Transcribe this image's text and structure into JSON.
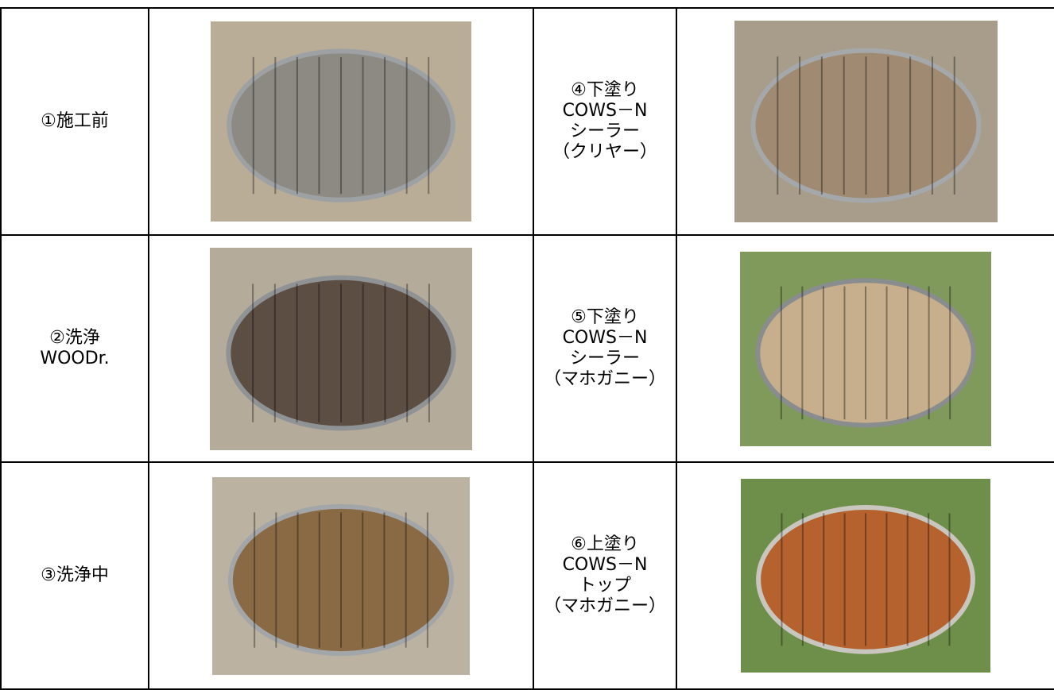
{
  "table": {
    "rows": [
      {
        "left": [
          "①施工前"
        ],
        "right": [
          "④下塗り",
          "COWS－N",
          "シーラー",
          "（クリヤー）"
        ]
      },
      {
        "left": [
          "②洗浄",
          "WOODr."
        ],
        "right": [
          "⑤下塗り",
          "COWS－N",
          "シーラー",
          "（マホガニー）"
        ]
      },
      {
        "left": [
          "③洗浄中"
        ],
        "right": [
          "⑥上塗り",
          "COWS－N",
          "トップ",
          "（マホガニー）"
        ]
      }
    ]
  }
}
